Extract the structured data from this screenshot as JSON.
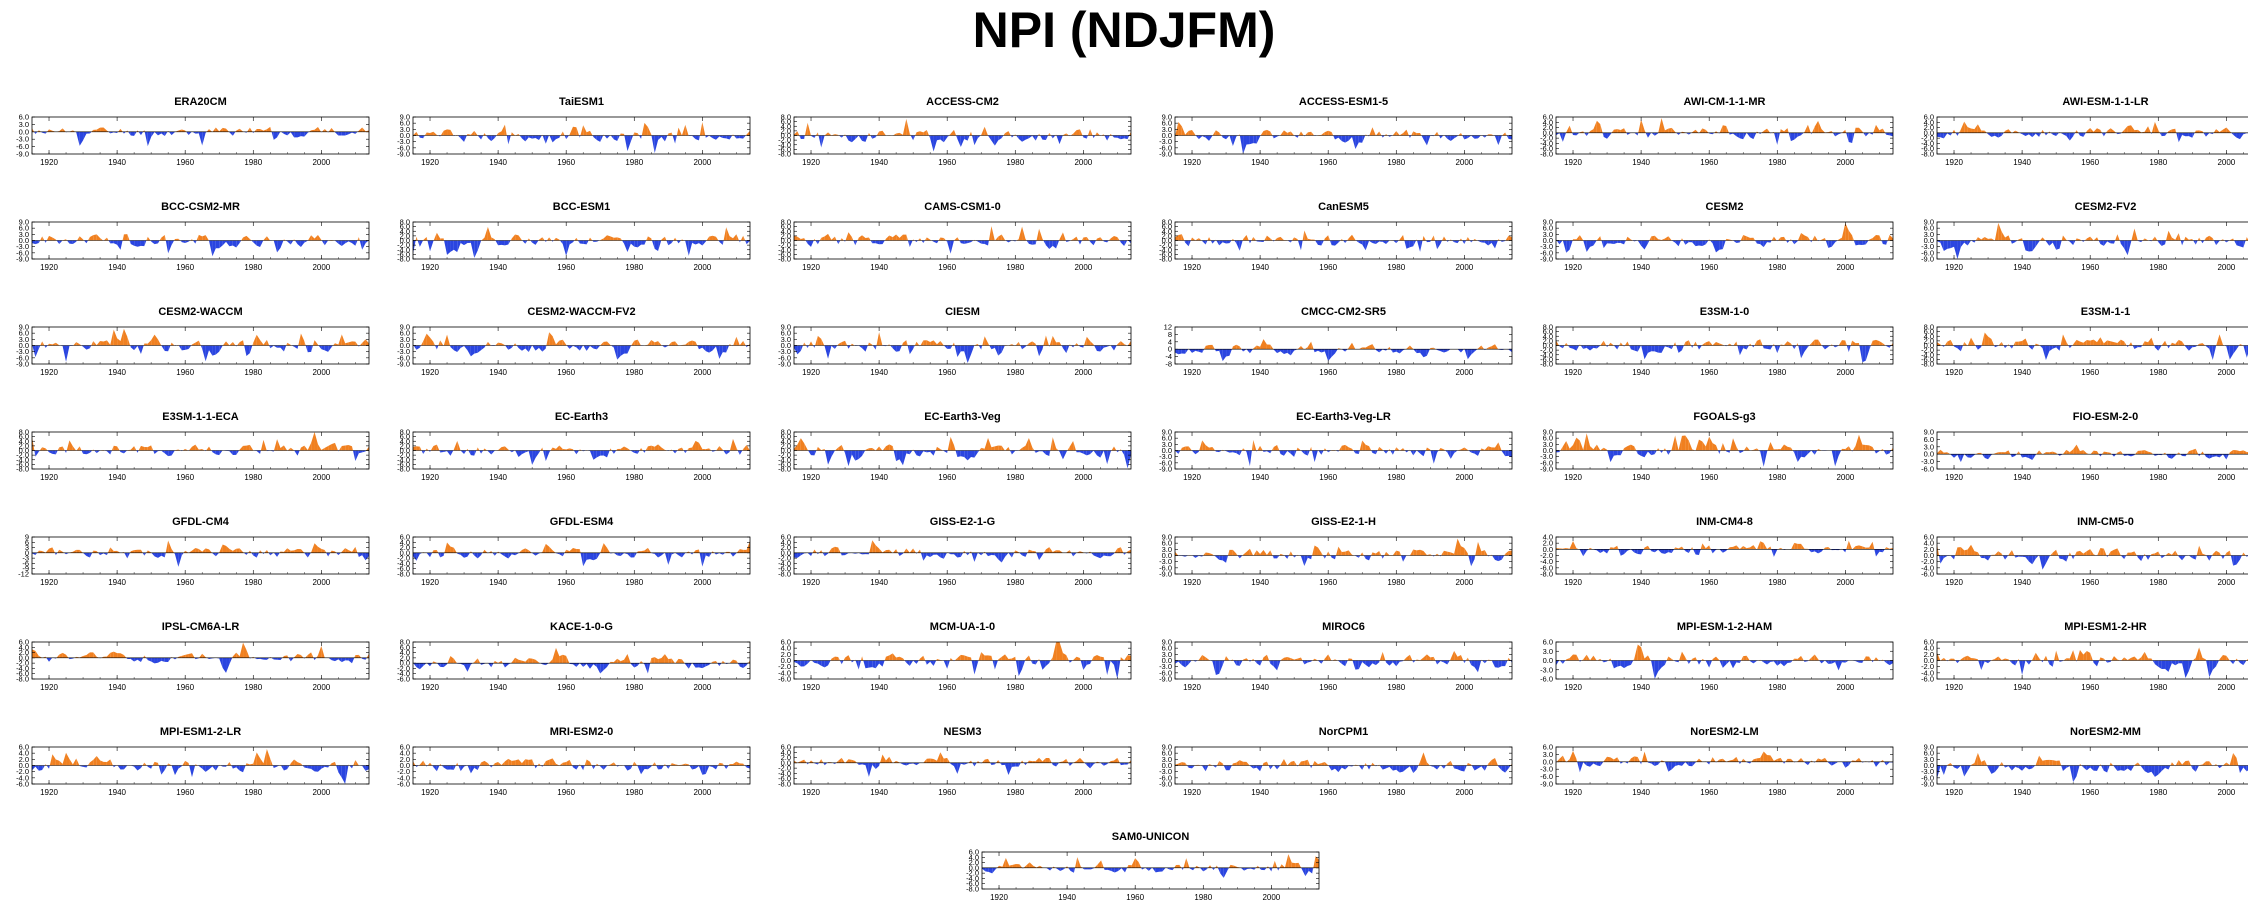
{
  "title": "NPI (NDJFM)",
  "colors": {
    "positive": "#f08020",
    "negative": "#2a45e0",
    "axis": "#000000"
  },
  "shared_x_ticks": [
    "1920",
    "1940",
    "1960",
    "1980",
    "2000"
  ],
  "chart_data": [
    {
      "type": "area",
      "title": "ERA20CM",
      "xlim": [
        1915,
        2014
      ],
      "yticks": [
        "6.0",
        "3.0",
        "0.0",
        "-3.0",
        "-6.0",
        "-9.0"
      ],
      "ylim": [
        -9,
        6
      ],
      "seed": 11
    },
    {
      "type": "area",
      "title": "TaiESM1",
      "xlim": [
        1915,
        2014
      ],
      "yticks": [
        "9.0",
        "6.0",
        "3.0",
        "0.0",
        "-3.0",
        "-6.0",
        "-9.0"
      ],
      "ylim": [
        -9,
        9
      ],
      "seed": 12
    },
    {
      "type": "area",
      "title": "ACCESS-CM2",
      "xlim": [
        1915,
        2014
      ],
      "yticks": [
        "8.0",
        "6.0",
        "4.0",
        "2.0",
        "0.0",
        "-2.0",
        "-4.0",
        "-6.0",
        "-8.0"
      ],
      "ylim": [
        -8,
        8
      ],
      "seed": 13
    },
    {
      "type": "area",
      "title": "ACCESS-ESM1-5",
      "xlim": [
        1915,
        2014
      ],
      "yticks": [
        "9.0",
        "6.0",
        "3.0",
        "0.0",
        "-3.0",
        "-6.0",
        "-9.0"
      ],
      "ylim": [
        -9,
        9
      ],
      "seed": 14
    },
    {
      "type": "area",
      "title": "AWI-CM-1-1-MR",
      "xlim": [
        1915,
        2014
      ],
      "yticks": [
        "6.0",
        "4.0",
        "2.0",
        "0.0",
        "-2.0",
        "-4.0",
        "-6.0",
        "-8.0"
      ],
      "ylim": [
        -8,
        6
      ],
      "seed": 15
    },
    {
      "type": "area",
      "title": "AWI-ESM-1-1-LR",
      "xlim": [
        1915,
        2014
      ],
      "yticks": [
        "6.0",
        "4.0",
        "2.0",
        "0.0",
        "-2.0",
        "-4.0",
        "-6.0",
        "-8.0"
      ],
      "ylim": [
        -8,
        6
      ],
      "seed": 16
    },
    {
      "type": "area",
      "title": "BCC-CSM2-MR",
      "xlim": [
        1915,
        2014
      ],
      "yticks": [
        "9.0",
        "6.0",
        "3.0",
        "0.0",
        "-3.0",
        "-6.0",
        "-9.0"
      ],
      "ylim": [
        -9,
        9
      ],
      "seed": 21
    },
    {
      "type": "area",
      "title": "BCC-ESM1",
      "xlim": [
        1915,
        2014
      ],
      "yticks": [
        "8.0",
        "6.0",
        "4.0",
        "2.0",
        "0.0",
        "-2.0",
        "-4.0",
        "-6.0",
        "-8.0"
      ],
      "ylim": [
        -8,
        8
      ],
      "seed": 22
    },
    {
      "type": "area",
      "title": "CAMS-CSM1-0",
      "xlim": [
        1915,
        2014
      ],
      "yticks": [
        "8.0",
        "6.0",
        "4.0",
        "2.0",
        "0.0",
        "-2.0",
        "-4.0",
        "-6.0",
        "-8.0"
      ],
      "ylim": [
        -8,
        8
      ],
      "seed": 23
    },
    {
      "type": "area",
      "title": "CanESM5",
      "xlim": [
        1915,
        2014
      ],
      "yticks": [
        "8.0",
        "6.0",
        "4.0",
        "2.0",
        "0.0",
        "-2.0",
        "-4.0",
        "-6.0",
        "-8.0"
      ],
      "ylim": [
        -8,
        8
      ],
      "seed": 24
    },
    {
      "type": "area",
      "title": "CESM2",
      "xlim": [
        1915,
        2014
      ],
      "yticks": [
        "9.0",
        "6.0",
        "3.0",
        "0.0",
        "-3.0",
        "-6.0",
        "-9.0"
      ],
      "ylim": [
        -9,
        9
      ],
      "seed": 25
    },
    {
      "type": "area",
      "title": "CESM2-FV2",
      "xlim": [
        1915,
        2014
      ],
      "yticks": [
        "9.0",
        "6.0",
        "3.0",
        "0.0",
        "-3.0",
        "-6.0",
        "-9.0"
      ],
      "ylim": [
        -9,
        9
      ],
      "seed": 26
    },
    {
      "type": "area",
      "title": "CESM2-WACCM",
      "xlim": [
        1915,
        2014
      ],
      "yticks": [
        "9.0",
        "6.0",
        "3.0",
        "0.0",
        "-3.0",
        "-6.0",
        "-9.0"
      ],
      "ylim": [
        -9,
        9
      ],
      "seed": 31
    },
    {
      "type": "area",
      "title": "CESM2-WACCM-FV2",
      "xlim": [
        1915,
        2014
      ],
      "yticks": [
        "9.0",
        "6.0",
        "3.0",
        "0.0",
        "-3.0",
        "-6.0",
        "-9.0"
      ],
      "ylim": [
        -9,
        9
      ],
      "seed": 32
    },
    {
      "type": "area",
      "title": "CIESM",
      "xlim": [
        1915,
        2014
      ],
      "yticks": [
        "9.0",
        "6.0",
        "3.0",
        "0.0",
        "-3.0",
        "-6.0",
        "-9.0"
      ],
      "ylim": [
        -9,
        9
      ],
      "seed": 33
    },
    {
      "type": "area",
      "title": "CMCC-CM2-SR5",
      "xlim": [
        1915,
        2014
      ],
      "yticks": [
        "12",
        "8",
        "4",
        "0",
        "-4",
        "-8"
      ],
      "ylim": [
        -8,
        12
      ],
      "seed": 34
    },
    {
      "type": "area",
      "title": "E3SM-1-0",
      "xlim": [
        1915,
        2014
      ],
      "yticks": [
        "8.0",
        "6.0",
        "4.0",
        "2.0",
        "0.0",
        "-2.0",
        "-4.0",
        "-6.0",
        "-8.0"
      ],
      "ylim": [
        -8,
        8
      ],
      "seed": 35
    },
    {
      "type": "area",
      "title": "E3SM-1-1",
      "xlim": [
        1915,
        2014
      ],
      "yticks": [
        "8.0",
        "6.0",
        "4.0",
        "2.0",
        "0.0",
        "-2.0",
        "-4.0",
        "-6.0",
        "-8.0"
      ],
      "ylim": [
        -8,
        8
      ],
      "seed": 36
    },
    {
      "type": "area",
      "title": "E3SM-1-1-ECA",
      "xlim": [
        1915,
        2014
      ],
      "yticks": [
        "8.0",
        "6.0",
        "4.0",
        "2.0",
        "0.0",
        "-2.0",
        "-4.0",
        "-6.0",
        "-8.0"
      ],
      "ylim": [
        -8,
        8
      ],
      "seed": 41
    },
    {
      "type": "area",
      "title": "EC-Earth3",
      "xlim": [
        1915,
        2014
      ],
      "yticks": [
        "8.0",
        "6.0",
        "4.0",
        "2.0",
        "0.0",
        "-2.0",
        "-4.0",
        "-6.0",
        "-8.0"
      ],
      "ylim": [
        -8,
        8
      ],
      "seed": 42
    },
    {
      "type": "area",
      "title": "EC-Earth3-Veg",
      "xlim": [
        1915,
        2014
      ],
      "yticks": [
        "8.0",
        "6.0",
        "4.0",
        "2.0",
        "0.0",
        "-2.0",
        "-4.0",
        "-6.0",
        "-8.0"
      ],
      "ylim": [
        -8,
        8
      ],
      "seed": 43
    },
    {
      "type": "area",
      "title": "EC-Earth3-Veg-LR",
      "xlim": [
        1915,
        2014
      ],
      "yticks": [
        "9.0",
        "6.0",
        "3.0",
        "0.0",
        "-3.0",
        "-6.0",
        "-9.0"
      ],
      "ylim": [
        -9,
        9
      ],
      "seed": 44
    },
    {
      "type": "area",
      "title": "FGOALS-g3",
      "xlim": [
        1915,
        2014
      ],
      "yticks": [
        "9.0",
        "6.0",
        "3.0",
        "0.0",
        "-3.0",
        "-6.0",
        "-9.0"
      ],
      "ylim": [
        -9,
        9
      ],
      "seed": 45
    },
    {
      "type": "area",
      "title": "FIO-ESM-2-0",
      "xlim": [
        1915,
        2014
      ],
      "yticks": [
        "9.0",
        "6.0",
        "3.0",
        "0.0",
        "-3.0",
        "-6.0"
      ],
      "ylim": [
        -6,
        9
      ],
      "seed": 46
    },
    {
      "type": "area",
      "title": "GFDL-CM4",
      "xlim": [
        1915,
        2014
      ],
      "yticks": [
        "9",
        "6",
        "3",
        "0",
        "-3",
        "-6",
        "-9",
        "-12"
      ],
      "ylim": [
        -12,
        9
      ],
      "seed": 51
    },
    {
      "type": "area",
      "title": "GFDL-ESM4",
      "xlim": [
        1915,
        2014
      ],
      "yticks": [
        "6.0",
        "4.0",
        "2.0",
        "0.0",
        "-2.0",
        "-4.0",
        "-6.0",
        "-8.0"
      ],
      "ylim": [
        -8,
        6
      ],
      "seed": 52
    },
    {
      "type": "area",
      "title": "GISS-E2-1-G",
      "xlim": [
        1915,
        2014
      ],
      "yticks": [
        "6.0",
        "4.0",
        "2.0",
        "0.0",
        "-2.0",
        "-4.0",
        "-6.0",
        "-8.0"
      ],
      "ylim": [
        -8,
        6
      ],
      "seed": 53
    },
    {
      "type": "area",
      "title": "GISS-E2-1-H",
      "xlim": [
        1915,
        2014
      ],
      "yticks": [
        "9.0",
        "6.0",
        "3.0",
        "0.0",
        "-3.0",
        "-6.0",
        "-9.0"
      ],
      "ylim": [
        -9,
        9
      ],
      "seed": 54
    },
    {
      "type": "area",
      "title": "INM-CM4-8",
      "xlim": [
        1915,
        2014
      ],
      "yticks": [
        "4.0",
        "2.0",
        "0.0",
        "-2.0",
        "-4.0",
        "-6.0",
        "-8.0"
      ],
      "ylim": [
        -8,
        4
      ],
      "seed": 55
    },
    {
      "type": "area",
      "title": "INM-CM5-0",
      "xlim": [
        1915,
        2014
      ],
      "yticks": [
        "6.0",
        "4.0",
        "2.0",
        "0.0",
        "-2.0",
        "-4.0",
        "-6.0"
      ],
      "ylim": [
        -6,
        6
      ],
      "seed": 56
    },
    {
      "type": "area",
      "title": "IPSL-CM6A-LR",
      "xlim": [
        1915,
        2014
      ],
      "yticks": [
        "6.0",
        "4.0",
        "2.0",
        "0.0",
        "-2.0",
        "-4.0",
        "-6.0",
        "-8.0"
      ],
      "ylim": [
        -8,
        6
      ],
      "seed": 61
    },
    {
      "type": "area",
      "title": "KACE-1-0-G",
      "xlim": [
        1915,
        2014
      ],
      "yticks": [
        "8.0",
        "6.0",
        "4.0",
        "2.0",
        "0.0",
        "-2.0",
        "-4.0",
        "-6.0"
      ],
      "ylim": [
        -6,
        8
      ],
      "seed": 62
    },
    {
      "type": "area",
      "title": "MCM-UA-1-0",
      "xlim": [
        1915,
        2014
      ],
      "yticks": [
        "6.0",
        "4.0",
        "2.0",
        "0.0",
        "-2.0",
        "-4.0",
        "-6.0"
      ],
      "ylim": [
        -6,
        6
      ],
      "seed": 63
    },
    {
      "type": "area",
      "title": "MIROC6",
      "xlim": [
        1915,
        2014
      ],
      "yticks": [
        "9.0",
        "6.0",
        "3.0",
        "0.0",
        "-3.0",
        "-6.0",
        "-9.0"
      ],
      "ylim": [
        -9,
        9
      ],
      "seed": 64
    },
    {
      "type": "area",
      "title": "MPI-ESM-1-2-HAM",
      "xlim": [
        1915,
        2014
      ],
      "yticks": [
        "6.0",
        "3.0",
        "0.0",
        "-3.0",
        "-6.0"
      ],
      "ylim": [
        -6,
        6
      ],
      "seed": 65
    },
    {
      "type": "area",
      "title": "MPI-ESM1-2-HR",
      "xlim": [
        1915,
        2014
      ],
      "yticks": [
        "6.0",
        "4.0",
        "2.0",
        "0.0",
        "-2.0",
        "-4.0",
        "-6.0"
      ],
      "ylim": [
        -6,
        6
      ],
      "seed": 66
    },
    {
      "type": "area",
      "title": "MPI-ESM1-2-LR",
      "xlim": [
        1915,
        2014
      ],
      "yticks": [
        "6.0",
        "4.0",
        "2.0",
        "0.0",
        "-2.0",
        "-4.0",
        "-6.0"
      ],
      "ylim": [
        -6,
        6
      ],
      "seed": 71
    },
    {
      "type": "area",
      "title": "MRI-ESM2-0",
      "xlim": [
        1915,
        2014
      ],
      "yticks": [
        "6.0",
        "4.0",
        "2.0",
        "0.0",
        "-2.0",
        "-4.0",
        "-6.0"
      ],
      "ylim": [
        -6,
        6
      ],
      "seed": 72
    },
    {
      "type": "area",
      "title": "NESM3",
      "xlim": [
        1915,
        2014
      ],
      "yticks": [
        "6.0",
        "4.0",
        "2.0",
        "0.0",
        "-2.0",
        "-4.0",
        "-6.0",
        "-8.0"
      ],
      "ylim": [
        -8,
        6
      ],
      "seed": 73
    },
    {
      "type": "area",
      "title": "NorCPM1",
      "xlim": [
        1915,
        2014
      ],
      "yticks": [
        "9.0",
        "6.0",
        "3.0",
        "0.0",
        "-3.0",
        "-6.0",
        "-9.0"
      ],
      "ylim": [
        -9,
        9
      ],
      "seed": 74
    },
    {
      "type": "area",
      "title": "NorESM2-LM",
      "xlim": [
        1915,
        2014
      ],
      "yticks": [
        "6.0",
        "3.0",
        "0.0",
        "-3.0",
        "-6.0",
        "-9.0"
      ],
      "ylim": [
        -9,
        6
      ],
      "seed": 75
    },
    {
      "type": "area",
      "title": "NorESM2-MM",
      "xlim": [
        1915,
        2014
      ],
      "yticks": [
        "9.0",
        "6.0",
        "3.0",
        "0.0",
        "-3.0",
        "-6.0",
        "-9.0"
      ],
      "ylim": [
        -9,
        9
      ],
      "seed": 76
    },
    {
      "type": "area",
      "title": "SAM0-UNICON",
      "xlim": [
        1915,
        2014
      ],
      "yticks": [
        "6.0",
        "4.0",
        "2.0",
        "0.0",
        "-2.0",
        "-4.0",
        "-6.0",
        "-8.0"
      ],
      "ylim": [
        -8,
        6
      ],
      "seed": 81
    }
  ]
}
